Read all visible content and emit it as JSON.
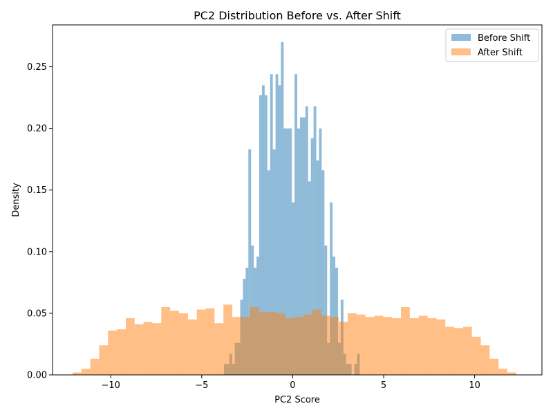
{
  "chart_data": {
    "type": "bar",
    "title": "PC2 Distribution Before vs. After Shift",
    "xlabel": "PC2 Score",
    "ylabel": "Density",
    "xlim": [
      -13.2,
      13.7
    ],
    "ylim": [
      0,
      0.284
    ],
    "xticks": [
      -10,
      -5,
      0,
      5,
      10
    ],
    "xtick_labels": [
      "−10",
      "−5",
      "0",
      "5",
      "10"
    ],
    "yticks": [
      0,
      0.05,
      0.1,
      0.15,
      0.2,
      0.25
    ],
    "ytick_labels": [
      "0.00",
      "0.05",
      "0.10",
      "0.15",
      "0.20",
      "0.25"
    ],
    "grid": false,
    "legend_position": "top-right",
    "series": [
      {
        "name": "Before Shift",
        "color": "#1f77b4",
        "alpha": 0.5,
        "bin_start": -3.78,
        "bin_width": 0.1493,
        "values": [
          0.009,
          0.009,
          0.017,
          0.009,
          0.026,
          0.026,
          0.061,
          0.078,
          0.087,
          0.183,
          0.105,
          0.087,
          0.096,
          0.227,
          0.235,
          0.227,
          0.166,
          0.244,
          0.183,
          0.244,
          0.235,
          0.27,
          0.2,
          0.2,
          0.2,
          0.14,
          0.244,
          0.2,
          0.209,
          0.209,
          0.218,
          0.157,
          0.192,
          0.218,
          0.174,
          0.2,
          0.166,
          0.105,
          0.026,
          0.14,
          0.096,
          0.087,
          0.026,
          0.061,
          0.017,
          0.009,
          0.009,
          0.0,
          0.009,
          0.017
        ]
      },
      {
        "name": "After Shift",
        "color": "#ff7f0e",
        "alpha": 0.5,
        "bin_start": -12.1,
        "bin_width": 0.4878,
        "values": [
          0.002,
          0.005,
          0.013,
          0.024,
          0.036,
          0.037,
          0.046,
          0.041,
          0.043,
          0.042,
          0.055,
          0.052,
          0.05,
          0.045,
          0.053,
          0.054,
          0.042,
          0.057,
          0.047,
          0.047,
          0.055,
          0.051,
          0.051,
          0.05,
          0.046,
          0.047,
          0.049,
          0.053,
          0.048,
          0.047,
          0.043,
          0.05,
          0.049,
          0.047,
          0.048,
          0.047,
          0.046,
          0.055,
          0.046,
          0.048,
          0.046,
          0.045,
          0.039,
          0.038,
          0.039,
          0.031,
          0.024,
          0.013,
          0.005,
          0.002
        ]
      }
    ]
  }
}
